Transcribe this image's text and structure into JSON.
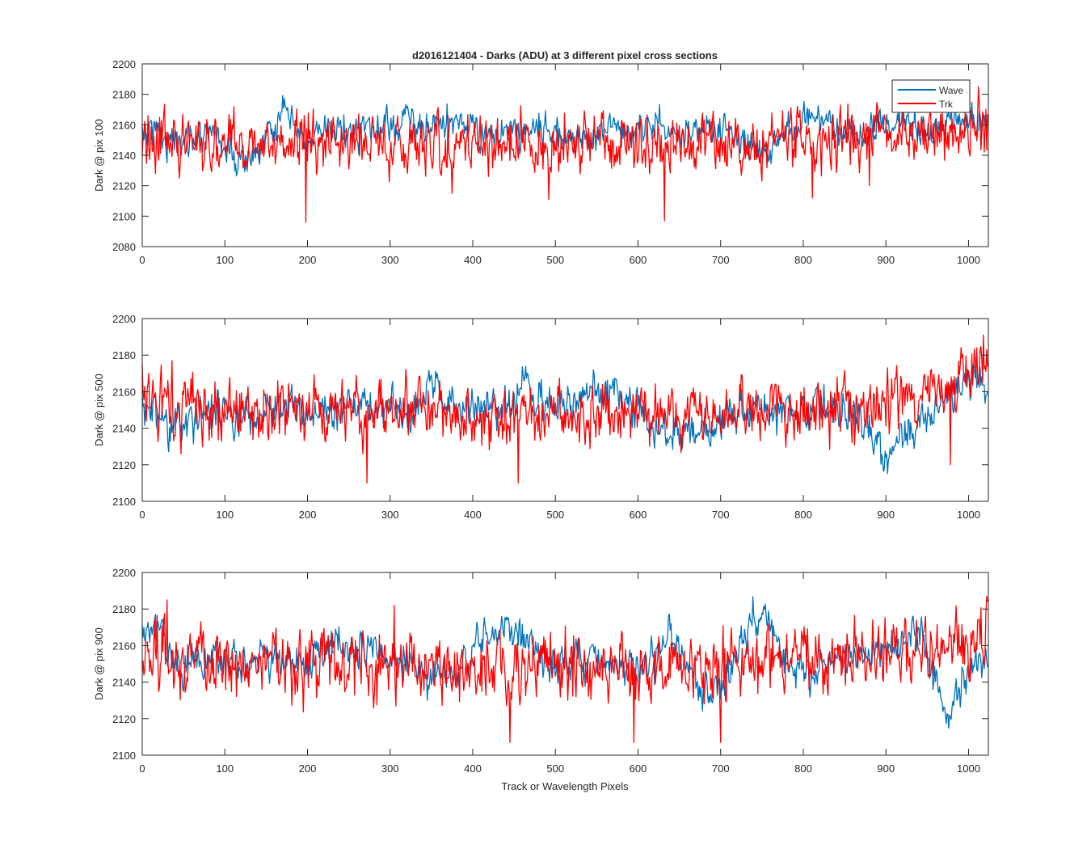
{
  "chart_data": [
    {
      "type": "line",
      "title": "d2016121404 - Darks (ADU) at 3 different pixel cross sections",
      "xlabel": "",
      "ylabel": "Dark @ pix 100",
      "xlim": [
        0,
        1024
      ],
      "ylim": [
        2080,
        2200
      ],
      "xticks": [
        0,
        100,
        200,
        300,
        400,
        500,
        600,
        700,
        800,
        900,
        1000
      ],
      "yticks": [
        2080,
        2100,
        2120,
        2140,
        2160,
        2180,
        2200
      ],
      "legend": {
        "placement": "top-right",
        "entries": [
          "Wave",
          "Trk"
        ]
      },
      "grid": false,
      "series": [
        {
          "name": "Wave",
          "color": "#0072BD",
          "n_points": 1024,
          "noise_std": 5,
          "baseline": [
            [
              0,
              2152
            ],
            [
              15,
              2160
            ],
            [
              30,
              2150
            ],
            [
              50,
              2148
            ],
            [
              70,
              2155
            ],
            [
              85,
              2158
            ],
            [
              100,
              2145
            ],
            [
              115,
              2135
            ],
            [
              135,
              2140
            ],
            [
              150,
              2150
            ],
            [
              170,
              2168
            ],
            [
              190,
              2152
            ],
            [
              200,
              2147
            ],
            [
              220,
              2155
            ],
            [
              250,
              2157
            ],
            [
              270,
              2156
            ],
            [
              300,
              2157
            ],
            [
              320,
              2165
            ],
            [
              340,
              2157
            ],
            [
              360,
              2160
            ],
            [
              380,
              2162
            ],
            [
              400,
              2158
            ],
            [
              420,
              2152
            ],
            [
              440,
              2153
            ],
            [
              460,
              2156
            ],
            [
              480,
              2160
            ],
            [
              500,
              2155
            ],
            [
              520,
              2150
            ],
            [
              540,
              2152
            ],
            [
              560,
              2157
            ],
            [
              580,
              2157
            ],
            [
              600,
              2160
            ],
            [
              620,
              2163
            ],
            [
              640,
              2155
            ],
            [
              650,
              2150
            ],
            [
              670,
              2157
            ],
            [
              700,
              2157
            ],
            [
              720,
              2150
            ],
            [
              740,
              2145
            ],
            [
              760,
              2143
            ],
            [
              780,
              2155
            ],
            [
              800,
              2163
            ],
            [
              820,
              2167
            ],
            [
              840,
              2158
            ],
            [
              850,
              2155
            ],
            [
              870,
              2152
            ],
            [
              900,
              2160
            ],
            [
              930,
              2159
            ],
            [
              950,
              2158
            ],
            [
              970,
              2160
            ],
            [
              1000,
              2163
            ],
            [
              1024,
              2162
            ]
          ]
        },
        {
          "name": "Trk",
          "color": "#FF0000",
          "n_points": 1024,
          "noise_std": 9,
          "baseline": [
            [
              0,
              2150
            ],
            [
              100,
              2148
            ],
            [
              200,
              2150
            ],
            [
              300,
              2147
            ],
            [
              400,
              2148
            ],
            [
              500,
              2148
            ],
            [
              600,
              2147
            ],
            [
              700,
              2147
            ],
            [
              800,
              2150
            ],
            [
              900,
              2152
            ],
            [
              1000,
              2155
            ],
            [
              1024,
              2157
            ]
          ],
          "spikes": [
            [
              198,
              2096
            ],
            [
              632,
              2097
            ],
            [
              45,
              2125
            ],
            [
              375,
              2115
            ],
            [
              492,
              2111
            ],
            [
              811,
              2112
            ],
            [
              880,
              2120
            ],
            [
              1012,
              2185
            ]
          ]
        }
      ]
    },
    {
      "type": "line",
      "title": "",
      "xlabel": "",
      "ylabel": "Dark @ pix 500",
      "xlim": [
        0,
        1024
      ],
      "ylim": [
        2100,
        2200
      ],
      "xticks": [
        0,
        100,
        200,
        300,
        400,
        500,
        600,
        700,
        800,
        900,
        1000
      ],
      "yticks": [
        2100,
        2120,
        2140,
        2160,
        2180,
        2200
      ],
      "grid": false,
      "series": [
        {
          "name": "Wave",
          "color": "#0072BD",
          "n_points": 1024,
          "noise_std": 5,
          "baseline": [
            [
              0,
              2155
            ],
            [
              20,
              2143
            ],
            [
              40,
              2140
            ],
            [
              60,
              2145
            ],
            [
              80,
              2150
            ],
            [
              100,
              2152
            ],
            [
              120,
              2145
            ],
            [
              140,
              2147
            ],
            [
              160,
              2155
            ],
            [
              180,
              2153
            ],
            [
              200,
              2150
            ],
            [
              250,
              2152
            ],
            [
              300,
              2150
            ],
            [
              330,
              2148
            ],
            [
              350,
              2162
            ],
            [
              370,
              2155
            ],
            [
              400,
              2150
            ],
            [
              450,
              2152
            ],
            [
              460,
              2163
            ],
            [
              480,
              2155
            ],
            [
              500,
              2150
            ],
            [
              540,
              2158
            ],
            [
              560,
              2162
            ],
            [
              580,
              2153
            ],
            [
              600,
              2150
            ],
            [
              620,
              2140
            ],
            [
              660,
              2135
            ],
            [
              700,
              2142
            ],
            [
              720,
              2150
            ],
            [
              760,
              2148
            ],
            [
              800,
              2150
            ],
            [
              840,
              2152
            ],
            [
              880,
              2145
            ],
            [
              890,
              2130
            ],
            [
              900,
              2118
            ],
            [
              910,
              2132
            ],
            [
              930,
              2140
            ],
            [
              950,
              2143
            ],
            [
              980,
              2160
            ],
            [
              1000,
              2167
            ],
            [
              1024,
              2162
            ]
          ]
        },
        {
          "name": "Trk",
          "color": "#FF0000",
          "n_points": 1024,
          "noise_std": 8,
          "baseline": [
            [
              0,
              2152
            ],
            [
              100,
              2150
            ],
            [
              200,
              2150
            ],
            [
              300,
              2148
            ],
            [
              400,
              2147
            ],
            [
              500,
              2147
            ],
            [
              600,
              2146
            ],
            [
              700,
              2148
            ],
            [
              800,
              2150
            ],
            [
              900,
              2152
            ],
            [
              950,
              2160
            ],
            [
              1000,
              2165
            ],
            [
              1024,
              2168
            ]
          ],
          "spikes": [
            [
              272,
              2110
            ],
            [
              455,
              2110
            ],
            [
              978,
              2120
            ],
            [
              1018,
              2191
            ],
            [
              0,
              2175
            ],
            [
              36,
              2177
            ]
          ]
        }
      ]
    },
    {
      "type": "line",
      "title": "",
      "xlabel": "Track or Wavelength Pixels",
      "ylabel": "Dark @ pix 900",
      "xlim": [
        0,
        1024
      ],
      "ylim": [
        2100,
        2200
      ],
      "xticks": [
        0,
        100,
        200,
        300,
        400,
        500,
        600,
        700,
        800,
        900,
        1000
      ],
      "yticks": [
        2100,
        2120,
        2140,
        2160,
        2180,
        2200
      ],
      "grid": false,
      "series": [
        {
          "name": "Wave",
          "color": "#0072BD",
          "n_points": 1024,
          "noise_std": 5,
          "baseline": [
            [
              0,
              2165
            ],
            [
              15,
              2170
            ],
            [
              30,
              2158
            ],
            [
              50,
              2145
            ],
            [
              70,
              2152
            ],
            [
              100,
              2150
            ],
            [
              130,
              2152
            ],
            [
              170,
              2152
            ],
            [
              200,
              2150
            ],
            [
              230,
              2160
            ],
            [
              250,
              2162
            ],
            [
              270,
              2158
            ],
            [
              300,
              2155
            ],
            [
              330,
              2150
            ],
            [
              350,
              2142
            ],
            [
              380,
              2148
            ],
            [
              400,
              2155
            ],
            [
              420,
              2165
            ],
            [
              440,
              2172
            ],
            [
              460,
              2165
            ],
            [
              480,
              2155
            ],
            [
              500,
              2150
            ],
            [
              540,
              2152
            ],
            [
              580,
              2150
            ],
            [
              620,
              2150
            ],
            [
              640,
              2165
            ],
            [
              660,
              2150
            ],
            [
              680,
              2130
            ],
            [
              700,
              2138
            ],
            [
              720,
              2155
            ],
            [
              740,
              2178
            ],
            [
              760,
              2172
            ],
            [
              780,
              2148
            ],
            [
              800,
              2145
            ],
            [
              840,
              2153
            ],
            [
              880,
              2155
            ],
            [
              920,
              2160
            ],
            [
              940,
              2168
            ],
            [
              960,
              2140
            ],
            [
              975,
              2122
            ],
            [
              990,
              2140
            ],
            [
              1010,
              2150
            ],
            [
              1024,
              2152
            ]
          ]
        },
        {
          "name": "Trk",
          "color": "#FF0000",
          "n_points": 1024,
          "noise_std": 9,
          "baseline": [
            [
              0,
              2153
            ],
            [
              100,
              2152
            ],
            [
              200,
              2150
            ],
            [
              300,
              2150
            ],
            [
              400,
              2148
            ],
            [
              500,
              2150
            ],
            [
              600,
              2148
            ],
            [
              700,
              2150
            ],
            [
              800,
              2153
            ],
            [
              900,
              2155
            ],
            [
              950,
              2160
            ],
            [
              1000,
              2160
            ],
            [
              1024,
              2162
            ]
          ],
          "spikes": [
            [
              445,
              2107
            ],
            [
              595,
              2107
            ],
            [
              700,
              2107
            ],
            [
              30,
              2185
            ],
            [
              305,
              2182
            ],
            [
              1022,
              2187
            ]
          ]
        }
      ]
    }
  ]
}
